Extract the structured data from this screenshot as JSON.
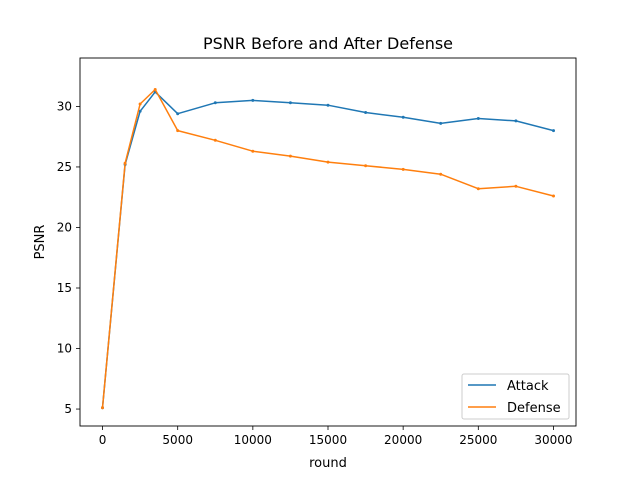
{
  "chart_data": {
    "type": "line",
    "title": "PSNR Before and After Defense",
    "xlabel": "round",
    "ylabel": "PSNR",
    "xlim": [
      -1500,
      31500
    ],
    "ylim": [
      3.6,
      34.0
    ],
    "xticks": [
      0,
      5000,
      10000,
      15000,
      20000,
      25000,
      30000
    ],
    "yticks": [
      5,
      10,
      15,
      20,
      25,
      30
    ],
    "grid": false,
    "legend_position": "lower right",
    "x": [
      0,
      1500,
      2500,
      3500,
      5000,
      7500,
      10000,
      12500,
      15000,
      17500,
      20000,
      22500,
      25000,
      27500,
      30000
    ],
    "series": [
      {
        "name": "Attack",
        "color": "#1f77b4",
        "values": [
          5.1,
          25.2,
          29.6,
          31.2,
          29.4,
          30.3,
          30.5,
          30.3,
          30.1,
          29.5,
          29.1,
          28.6,
          29.0,
          28.8,
          28.0
        ]
      },
      {
        "name": "Defense",
        "color": "#ff7f0e",
        "values": [
          5.1,
          25.3,
          30.2,
          31.4,
          28.0,
          27.2,
          26.3,
          25.9,
          25.4,
          25.1,
          24.8,
          24.4,
          23.2,
          23.4,
          22.6
        ]
      }
    ]
  }
}
